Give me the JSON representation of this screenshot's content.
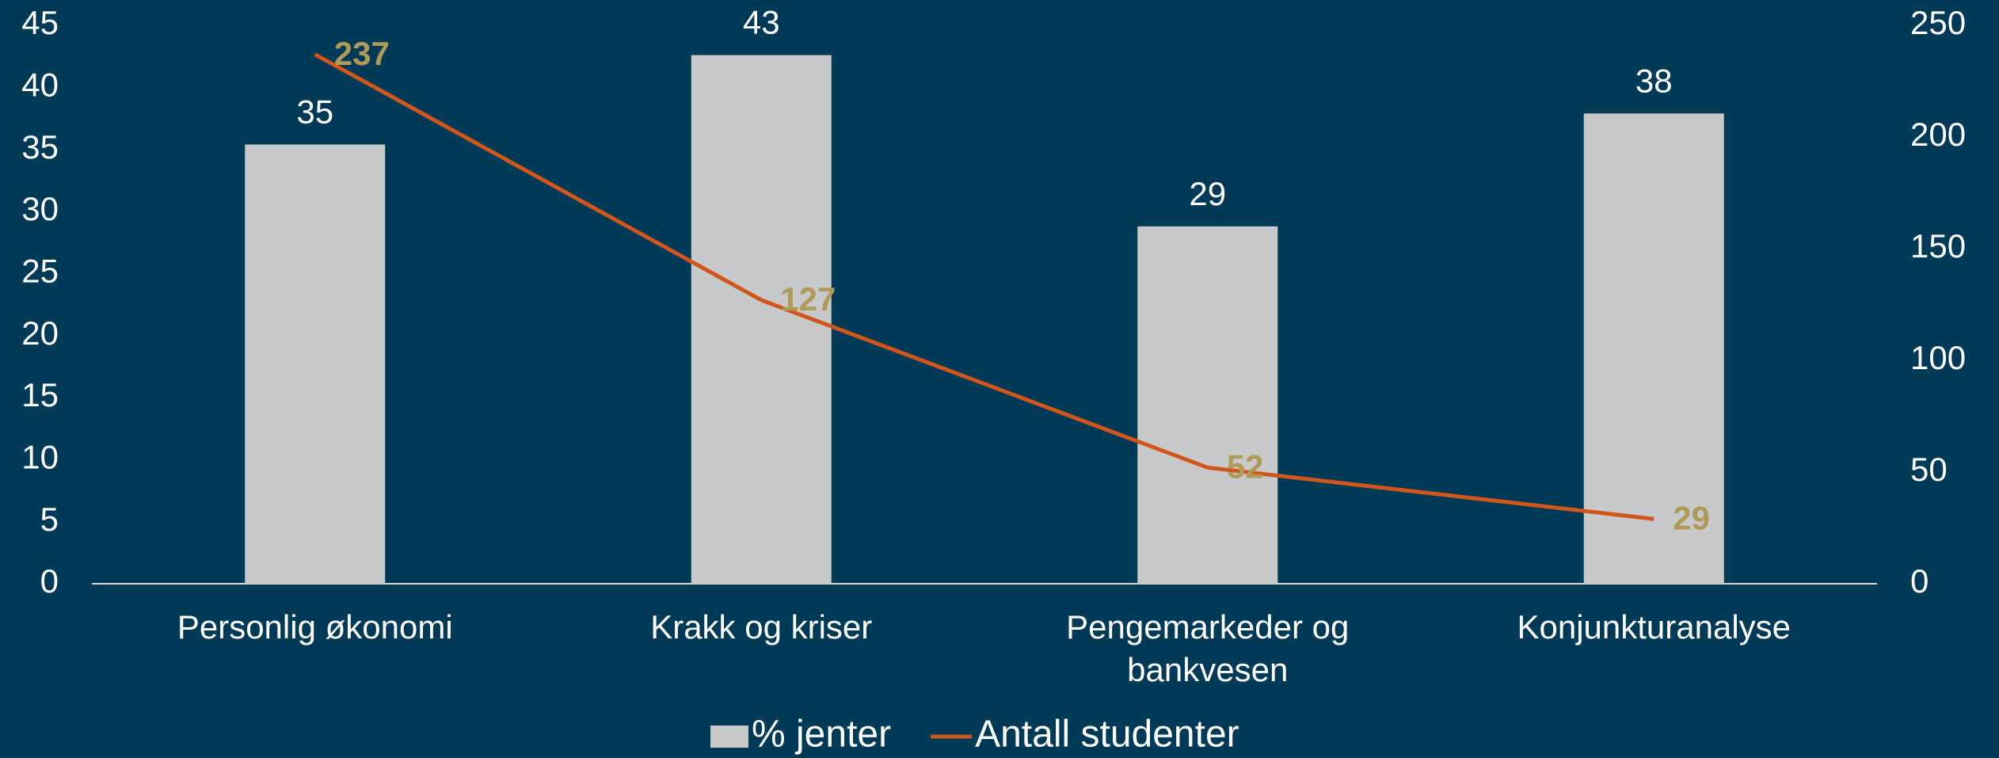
{
  "chart_data": {
    "type": "bar_line",
    "categories": [
      "Personlig økonomi",
      "Krakk og kriser",
      "Pengemarkeder og bankvesen",
      "Konjunkturanalyse"
    ],
    "series": [
      {
        "name": "% jenter",
        "type": "bar",
        "color": "#c8c9cb",
        "values": [
          35.4,
          42.6,
          28.8,
          37.9
        ],
        "value_labels": [
          "35",
          "43",
          "29",
          "38"
        ]
      },
      {
        "name": "Antall studenter",
        "type": "line",
        "axis": "y2",
        "color": "#d0561b",
        "label_color": "#b09a5a",
        "values": [
          237,
          127,
          52,
          29
        ]
      }
    ],
    "ylim": [
      0,
      45
    ],
    "yticks": [
      0,
      5,
      10,
      15,
      20,
      25,
      30,
      35,
      40,
      45
    ],
    "y2lim": [
      0,
      250
    ],
    "y2ticks": [
      0,
      50,
      100,
      150,
      200,
      250
    ],
    "legend": "bottom"
  }
}
